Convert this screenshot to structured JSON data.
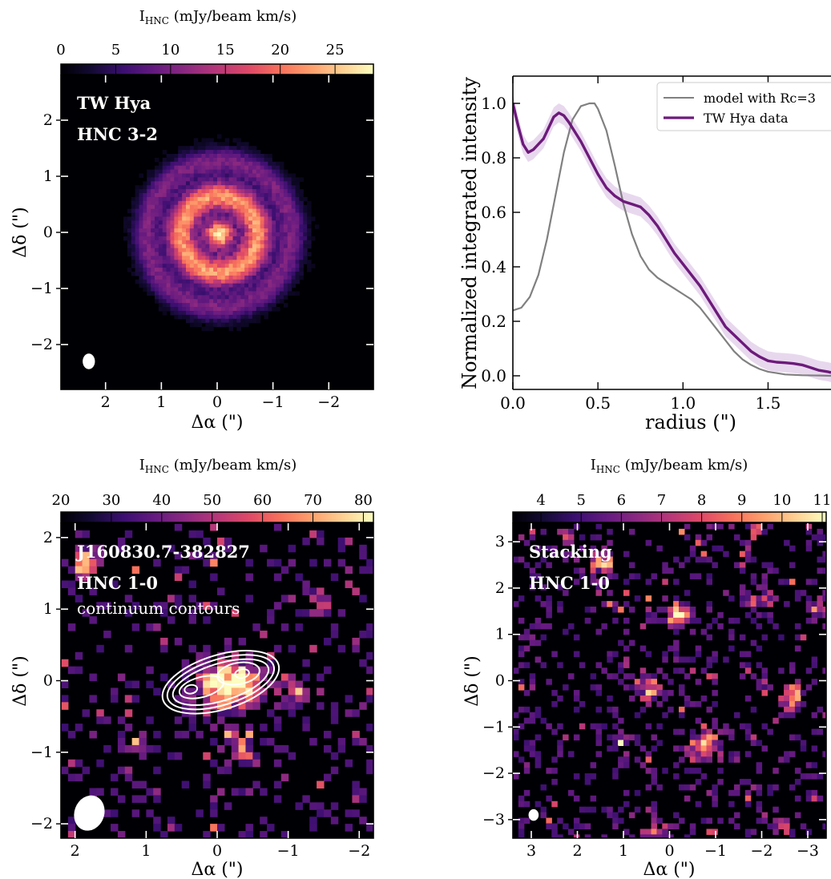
{
  "colormap": [
    "#000004",
    "#140b34",
    "#3b0f70",
    "#641a80",
    "#8c2981",
    "#b73779",
    "#de4968",
    "#f7705c",
    "#fe9f6d",
    "#fecf92",
    "#fcfdbf"
  ],
  "contour_color": "#ffffff",
  "beam_color": "#ffffff",
  "chart_data": [
    {
      "id": "twhya-map",
      "type": "heatmap",
      "colorbar_label_main": "I",
      "colorbar_label_sub": "HNC",
      "colorbar_label_rest": " (mJy/beam km/s)",
      "colorbar_range": [
        0,
        28.5
      ],
      "colorbar_ticks": [
        0,
        5,
        10,
        15,
        20,
        25
      ],
      "colorbar_tick_labels": [
        "0",
        "5",
        "10",
        "15",
        "20",
        "25"
      ],
      "xlabel": "Δα (\")",
      "ylabel": "Δδ (\")",
      "xlim": [
        2.8,
        -2.8
      ],
      "ylim": [
        -2.8,
        2.8
      ],
      "xticks": [
        2,
        1,
        0,
        -1,
        -2
      ],
      "xtick_labels": [
        "2",
        "1",
        "0",
        "−1",
        "−2"
      ],
      "yticks": [
        -2,
        -1,
        0,
        1,
        2
      ],
      "ytick_labels": [
        "−2",
        "−1",
        "0",
        "1",
        "2"
      ],
      "annotations": [
        "TW Hya",
        "HNC 3-2"
      ],
      "beam": {
        "x": 2.3,
        "y": -2.3,
        "major": 0.28,
        "minor": 0.22,
        "pa": 0
      },
      "map": {
        "kind": "disk",
        "peak": 24,
        "radius": 1.4,
        "noise": 0.9,
        "seed": 7
      }
    },
    {
      "id": "radial-profile",
      "type": "line",
      "xlabel": "radius (\")",
      "ylabel": "Normalized integrated intensity",
      "xlim": [
        0,
        1.87
      ],
      "ylim": [
        -0.05,
        1.1
      ],
      "xticks": [
        0.0,
        0.5,
        1.0,
        1.5
      ],
      "xtick_labels": [
        "0.0",
        "0.5",
        "1.0",
        "1.5"
      ],
      "yticks": [
        0.0,
        0.2,
        0.4,
        0.6,
        0.8,
        1.0
      ],
      "ytick_labels": [
        "0.0",
        "0.2",
        "0.4",
        "0.6",
        "0.8",
        "1.0"
      ],
      "legend": "top-right",
      "series": [
        {
          "name": "model with Rc=3",
          "color": "#808080",
          "x": [
            0.0,
            0.05,
            0.1,
            0.15,
            0.2,
            0.25,
            0.3,
            0.35,
            0.4,
            0.45,
            0.48,
            0.5,
            0.55,
            0.6,
            0.65,
            0.7,
            0.75,
            0.8,
            0.85,
            0.9,
            0.95,
            1.0,
            1.05,
            1.1,
            1.15,
            1.2,
            1.25,
            1.3,
            1.35,
            1.4,
            1.45,
            1.5,
            1.55,
            1.6,
            1.7,
            1.8,
            1.87
          ],
          "y": [
            0.24,
            0.25,
            0.29,
            0.37,
            0.5,
            0.66,
            0.82,
            0.94,
            0.99,
            1.0,
            1.0,
            0.98,
            0.9,
            0.77,
            0.63,
            0.52,
            0.44,
            0.39,
            0.36,
            0.34,
            0.32,
            0.3,
            0.28,
            0.25,
            0.21,
            0.17,
            0.13,
            0.09,
            0.06,
            0.04,
            0.025,
            0.015,
            0.01,
            0.005,
            0.002,
            0.001,
            0.0
          ]
        },
        {
          "name": "TW Hya data",
          "color": "#6c1a7a",
          "x": [
            0.0,
            0.03,
            0.06,
            0.09,
            0.12,
            0.15,
            0.18,
            0.21,
            0.24,
            0.27,
            0.3,
            0.33,
            0.36,
            0.4,
            0.45,
            0.5,
            0.55,
            0.6,
            0.65,
            0.7,
            0.75,
            0.8,
            0.85,
            0.9,
            0.95,
            1.0,
            1.05,
            1.1,
            1.15,
            1.2,
            1.25,
            1.3,
            1.35,
            1.4,
            1.45,
            1.5,
            1.55,
            1.6,
            1.65,
            1.7,
            1.75,
            1.8,
            1.85,
            1.87
          ],
          "y": [
            1.0,
            0.92,
            0.85,
            0.82,
            0.83,
            0.85,
            0.87,
            0.91,
            0.95,
            0.965,
            0.955,
            0.93,
            0.9,
            0.86,
            0.8,
            0.74,
            0.69,
            0.66,
            0.64,
            0.63,
            0.62,
            0.59,
            0.55,
            0.5,
            0.45,
            0.41,
            0.37,
            0.33,
            0.28,
            0.23,
            0.18,
            0.15,
            0.12,
            0.09,
            0.07,
            0.055,
            0.05,
            0.048,
            0.045,
            0.04,
            0.03,
            0.02,
            0.015,
            0.012
          ],
          "err": 0.035
        }
      ]
    },
    {
      "id": "j1608-map",
      "type": "heatmap",
      "colorbar_label_main": "I",
      "colorbar_label_sub": "HNC",
      "colorbar_label_rest": " (mJy/beam km/s)",
      "colorbar_range": [
        20,
        82
      ],
      "colorbar_ticks": [
        20,
        30,
        40,
        50,
        60,
        70,
        80
      ],
      "colorbar_tick_labels": [
        "20",
        "30",
        "40",
        "50",
        "60",
        "70",
        "80"
      ],
      "xlabel": "Δα (\")",
      "ylabel": "Δδ (\")",
      "xlim": [
        2.2,
        -2.2
      ],
      "ylim": [
        -2.2,
        2.2
      ],
      "xticks": [
        2,
        1,
        0,
        -1,
        -2
      ],
      "xtick_labels": [
        "2",
        "1",
        "0",
        "−1",
        "−2"
      ],
      "yticks": [
        -2,
        -1,
        0,
        1,
        2
      ],
      "ytick_labels": [
        "−2",
        "−1",
        "0",
        "1",
        "2"
      ],
      "annotations": [
        "J160830.7-382827",
        "HNC 1-0"
      ],
      "note": "continuum contours",
      "beam": {
        "x": 1.8,
        "y": -1.85,
        "major": 0.5,
        "minor": 0.42,
        "pa": 20
      },
      "map": {
        "kind": "patchy",
        "peak": 70,
        "base": 20,
        "noise": 0.55,
        "pixel": 0.1,
        "seed": 11,
        "blobs": [
          [
            0.0,
            -0.05,
            0.35,
            1.0
          ],
          [
            -0.35,
            0.05,
            0.25,
            0.7
          ],
          [
            1.9,
            1.7,
            0.2,
            0.7
          ],
          [
            1.2,
            -0.8,
            0.15,
            0.6
          ],
          [
            -0.3,
            -0.9,
            0.25,
            0.55
          ],
          [
            -1.4,
            1.2,
            0.2,
            0.5
          ],
          [
            -1.0,
            -0.1,
            0.2,
            0.5
          ]
        ]
      },
      "contours": [
        {
          "cx": -0.05,
          "cy": -0.02,
          "rx": 0.85,
          "ry": 0.38,
          "rot": 17
        },
        {
          "cx": -0.05,
          "cy": -0.02,
          "rx": 0.78,
          "ry": 0.32,
          "rot": 17
        },
        {
          "cx": -0.05,
          "cy": -0.02,
          "rx": 0.7,
          "ry": 0.26,
          "rot": 17
        },
        {
          "cx": -0.3,
          "cy": 0.1,
          "rx": 0.3,
          "ry": 0.15,
          "rot": 10
        },
        {
          "cx": -0.35,
          "cy": 0.1,
          "rx": 0.1,
          "ry": 0.06,
          "rot": 10
        },
        {
          "cx": 0.22,
          "cy": -0.09,
          "rx": 0.32,
          "ry": 0.14,
          "rot": 15
        },
        {
          "cx": 0.37,
          "cy": -0.12,
          "rx": 0.09,
          "ry": 0.06,
          "rot": 10
        }
      ]
    },
    {
      "id": "stacking-map",
      "type": "heatmap",
      "colorbar_label_main": "I",
      "colorbar_label_sub": "HNC",
      "colorbar_label_rest": " (mJy/beam km/s)",
      "colorbar_range": [
        3.3,
        11.1
      ],
      "colorbar_ticks": [
        4,
        5,
        6,
        7,
        8,
        9,
        10,
        11
      ],
      "colorbar_tick_labels": [
        "4",
        "5",
        "6",
        "7",
        "8",
        "9",
        "10",
        "11"
      ],
      "xlabel": "Δα (\")",
      "ylabel": "Δδ (\")",
      "xlim": [
        3.4,
        -3.4
      ],
      "ylim": [
        -3.4,
        3.4
      ],
      "xticks": [
        3,
        2,
        1,
        0,
        -1,
        -2,
        -3
      ],
      "xtick_labels": [
        "3",
        "2",
        "1",
        "0",
        "−1",
        "−2",
        "−3"
      ],
      "yticks": [
        -3,
        -2,
        -1,
        0,
        1,
        2,
        3
      ],
      "ytick_labels": [
        "−3",
        "−2",
        "−1",
        "0",
        "1",
        "2",
        "3"
      ],
      "annotations": [
        "Stacking",
        "HNC 1-0"
      ],
      "beam": {
        "x": 2.95,
        "y": -2.9,
        "major": 0.25,
        "minor": 0.22,
        "pa": 0
      },
      "map": {
        "kind": "patchy",
        "peak": 10.5,
        "base": 3.3,
        "noise": 0.62,
        "pixel": 0.12,
        "seed": 23,
        "blobs": [
          [
            -0.1,
            1.5,
            0.25,
            0.95
          ],
          [
            0.5,
            -0.1,
            0.25,
            0.8
          ],
          [
            -0.7,
            -1.3,
            0.35,
            0.8
          ],
          [
            -2.6,
            -0.3,
            0.25,
            0.95
          ],
          [
            -1.8,
            3.3,
            0.15,
            0.9
          ],
          [
            1.5,
            2.6,
            0.3,
            0.7
          ],
          [
            -3.2,
            1.6,
            0.2,
            0.7
          ],
          [
            -1.9,
            1.8,
            0.25,
            0.6
          ],
          [
            1.1,
            -1.3,
            0.2,
            0.45
          ],
          [
            -1.7,
            -2.3,
            0.2,
            0.45
          ],
          [
            2.3,
            3.2,
            0.2,
            0.5
          ],
          [
            0.3,
            -3.3,
            0.3,
            0.6
          ],
          [
            -2.4,
            -3.1,
            0.2,
            0.5
          ],
          [
            -0.6,
            3.0,
            0.15,
            0.55
          ]
        ]
      }
    }
  ]
}
